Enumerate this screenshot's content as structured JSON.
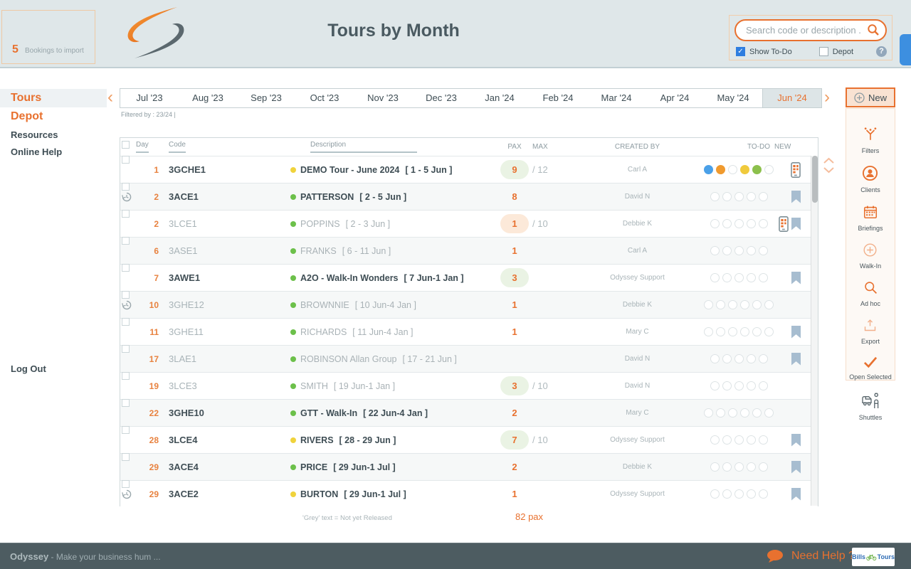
{
  "header": {
    "bookings_count": "5",
    "bookings_label": "Bookings to import",
    "title": "Tours by Month",
    "search_placeholder": "Search code or description ...",
    "show_todo_label": "Show To-Do",
    "depot_label": "Depot",
    "help_glyph": "?"
  },
  "sidebar": {
    "items": [
      {
        "label": "Tours",
        "active": true,
        "color": "orange",
        "size": "lg"
      },
      {
        "label": "Depot",
        "active": false,
        "color": "orange",
        "size": "lg"
      },
      {
        "label": "Resources",
        "active": false,
        "color": "dark",
        "size": "md"
      },
      {
        "label": "Online Help",
        "active": false,
        "color": "dark",
        "size": "md"
      }
    ],
    "logout_label": "Log Out"
  },
  "months": {
    "tabs": [
      "Jul '23",
      "Aug '23",
      "Sep '23",
      "Oct '23",
      "Nov '23",
      "Dec '23",
      "Jan '24",
      "Feb '24",
      "Mar '24",
      "Apr '24",
      "May '24",
      "Jun '24"
    ],
    "selected": "Jun '24",
    "filtered_by": "Filtered by : 23/24 |"
  },
  "table": {
    "columns": {
      "day": "Day",
      "code": "Code",
      "description": "Description",
      "pax": "PAX",
      "max": "MAX",
      "created_by": "CREATED BY",
      "todo": "TO-DO",
      "new": "NEW"
    },
    "rows": [
      {
        "day": "1",
        "code": "3GCHE1",
        "released": true,
        "dot": "yellow",
        "desc": "DEMO Tour - June 2024",
        "dates": "[ 1 - 5 Jun ]",
        "pax": "9",
        "pill": "green",
        "max": "/ 12",
        "created_by": "Carl A",
        "todo": [
          "blue",
          "orange",
          "empty",
          "yellow",
          "green",
          "empty"
        ],
        "phone": true,
        "bookmark": false,
        "history": false
      },
      {
        "day": "2",
        "code": "3ACE1",
        "released": true,
        "dot": "green",
        "desc": "PATTERSON",
        "dates": "[ 2 - 5 Jun ]",
        "pax": "8",
        "pill": "",
        "max": "",
        "created_by": "David N",
        "todo": [
          "empty",
          "empty",
          "empty",
          "empty",
          "empty"
        ],
        "phone": false,
        "bookmark": true,
        "history": true
      },
      {
        "day": "2",
        "code": "3LCE1",
        "released": false,
        "dot": "green",
        "desc": "POPPINS",
        "dates": "[ 2 - 3 Jun ]",
        "pax": "1",
        "pill": "orangebg",
        "max": "/ 10",
        "created_by": "Debbie K",
        "todo": [
          "empty",
          "empty",
          "empty",
          "empty",
          "empty"
        ],
        "phone": true,
        "bookmark": true,
        "history": false
      },
      {
        "day": "6",
        "code": "3ASE1",
        "released": false,
        "dot": "green",
        "desc": "FRANKS",
        "dates": "[ 6 - 11 Jun ]",
        "pax": "1",
        "pill": "",
        "max": "",
        "created_by": "Carl A",
        "todo": [
          "empty",
          "empty",
          "empty",
          "empty",
          "empty"
        ],
        "phone": false,
        "bookmark": false,
        "history": false
      },
      {
        "day": "7",
        "code": "3AWE1",
        "released": true,
        "dot": "green",
        "desc": "A2O - Walk-In Wonders",
        "dates": "[ 7 Jun-1 Jan ]",
        "pax": "3",
        "pill": "green",
        "max": "",
        "created_by": "Odyssey Support",
        "todo": [
          "empty",
          "empty",
          "empty",
          "empty",
          "empty"
        ],
        "phone": false,
        "bookmark": true,
        "history": false
      },
      {
        "day": "10",
        "code": "3GHE12",
        "released": false,
        "dot": "green",
        "desc": "BROWNNIE",
        "dates": "[ 10 Jun-4 Jan ]",
        "pax": "1",
        "pill": "",
        "max": "",
        "created_by": "Debbie K",
        "todo": [
          "empty",
          "empty",
          "empty",
          "empty",
          "empty",
          "empty"
        ],
        "phone": false,
        "bookmark": false,
        "history": true
      },
      {
        "day": "11",
        "code": "3GHE11",
        "released": false,
        "dot": "green",
        "desc": "RICHARDS",
        "dates": "[ 11 Jun-4 Jan ]",
        "pax": "1",
        "pill": "",
        "max": "",
        "created_by": "Mary C",
        "todo": [
          "empty",
          "empty",
          "empty",
          "empty",
          "empty",
          "empty"
        ],
        "phone": false,
        "bookmark": true,
        "history": false
      },
      {
        "day": "17",
        "code": "3LAE1",
        "released": false,
        "dot": "green",
        "desc": "ROBINSON Allan Group",
        "dates": "[ 17 - 21 Jun ]",
        "pax": "",
        "pill": "",
        "max": "",
        "created_by": "David N",
        "todo": [
          "empty",
          "empty",
          "empty",
          "empty",
          "empty"
        ],
        "phone": false,
        "bookmark": true,
        "history": false
      },
      {
        "day": "19",
        "code": "3LCE3",
        "released": false,
        "dot": "green",
        "desc": "SMITH",
        "dates": "[ 19 Jun-1 Jan ]",
        "pax": "3",
        "pill": "green",
        "max": "/ 10",
        "created_by": "David N",
        "todo": [
          "empty",
          "empty",
          "empty",
          "empty",
          "empty"
        ],
        "phone": false,
        "bookmark": false,
        "history": false
      },
      {
        "day": "22",
        "code": "3GHE10",
        "released": true,
        "dot": "green",
        "desc": "GTT - Walk-In",
        "dates": "[ 22 Jun-4 Jan ]",
        "pax": "2",
        "pill": "",
        "max": "",
        "created_by": "Mary C",
        "todo": [
          "empty",
          "empty",
          "empty",
          "empty",
          "empty",
          "empty"
        ],
        "phone": false,
        "bookmark": false,
        "history": false
      },
      {
        "day": "28",
        "code": "3LCE4",
        "released": true,
        "dot": "yellow",
        "desc": "RIVERS",
        "dates": "[ 28 - 29 Jun ]",
        "pax": "7",
        "pill": "green",
        "max": "/ 10",
        "created_by": "Odyssey Support",
        "todo": [
          "empty",
          "empty",
          "empty",
          "empty",
          "empty"
        ],
        "phone": false,
        "bookmark": true,
        "history": false
      },
      {
        "day": "29",
        "code": "3ACE4",
        "released": true,
        "dot": "green",
        "desc": "PRICE",
        "dates": "[ 29 Jun-1 Jul ]",
        "pax": "2",
        "pill": "",
        "max": "",
        "created_by": "Debbie K",
        "todo": [
          "empty",
          "empty",
          "empty",
          "empty",
          "empty"
        ],
        "phone": false,
        "bookmark": true,
        "history": false
      },
      {
        "day": "29",
        "code": "3ACE2",
        "released": true,
        "dot": "yellow",
        "desc": "BURTON",
        "dates": "[ 29 Jun-1 Jul ]",
        "pax": "1",
        "pill": "",
        "max": "",
        "created_by": "Odyssey Support",
        "todo": [
          "empty",
          "empty",
          "empty",
          "empty",
          "empty"
        ],
        "phone": false,
        "bookmark": true,
        "history": true
      }
    ],
    "footnote": "'Grey' text = Not yet Released",
    "total_pax": "82 pax"
  },
  "tools": {
    "new_label": "New",
    "items": [
      {
        "label": "Filters",
        "icon": "filters-icon"
      },
      {
        "label": "Clients",
        "icon": "clients-icon"
      },
      {
        "label": "Briefings",
        "icon": "briefings-icon"
      },
      {
        "label": "Walk-In",
        "icon": "walk-in-icon"
      },
      {
        "label": "Ad hoc",
        "icon": "ad-hoc-icon"
      },
      {
        "label": "Export",
        "icon": "export-icon"
      },
      {
        "label": "Open Selected",
        "icon": "open-selected-icon"
      },
      {
        "label": "Shuttles",
        "icon": "shuttles-icon"
      }
    ]
  },
  "footer": {
    "brand": "Odyssey",
    "tagline": " - Make your business hum ...",
    "help_label": "Need Help ?",
    "logo_bills": "Bills",
    "logo_tours": "Tours"
  },
  "colors": {
    "accent_orange": "#e8712f",
    "header_bg": "#dfe7e9",
    "footer_bg": "#4d5c61",
    "pill_green_bg": "#eaf3e4",
    "pill_orange_bg": "#fce9d9",
    "todo_blue": "#4aa0e8",
    "todo_orange": "#f09a2e",
    "todo_yellow": "#f0ca3c",
    "todo_green": "#8cc04c"
  }
}
